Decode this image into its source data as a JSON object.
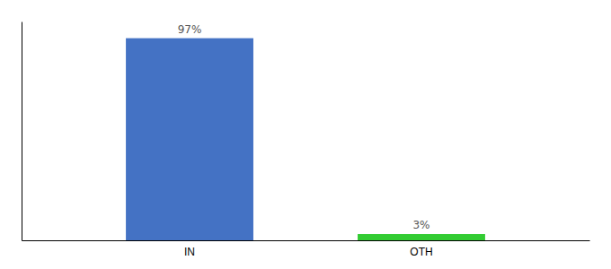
{
  "chart_data": {
    "type": "bar",
    "categories": [
      "IN",
      "OTH"
    ],
    "values": [
      97,
      3
    ],
    "value_labels": [
      "97%",
      "3%"
    ],
    "colors": [
      "#4472c4",
      "#33cc33"
    ],
    "ylim": [
      0,
      105
    ],
    "data_labels": true,
    "tick_labels": "x",
    "grid": false
  }
}
